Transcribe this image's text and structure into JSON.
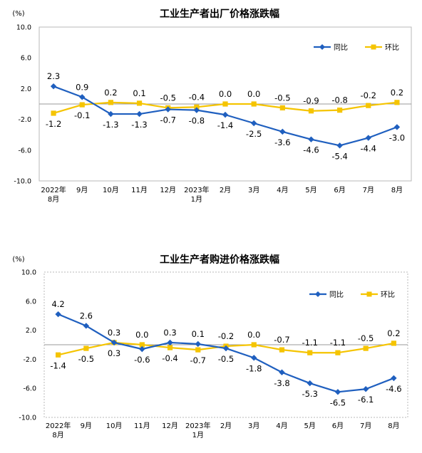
{
  "chart_data": [
    {
      "type": "line",
      "title": "工业生产者出厂价格涨跌幅",
      "unit_label": "(%)",
      "categories": [
        "2022年\n8月",
        "9月",
        "10月",
        "11月",
        "12月",
        "2023年\n1月",
        "2月",
        "3月",
        "4月",
        "5月",
        "6月",
        "7月",
        "8月"
      ],
      "y_ticks": [
        "10.0",
        "6.0",
        "2.0",
        "-2.0",
        "-6.0",
        "-10.0"
      ],
      "ylim": [
        -10,
        10
      ],
      "legend_position": "top-right",
      "series": [
        {
          "name": "同比",
          "color": "#1f5fbf",
          "marker": "diamond",
          "values": [
            2.3,
            0.9,
            -1.3,
            -1.3,
            -0.7,
            -0.8,
            -1.4,
            -2.5,
            -3.6,
            -4.6,
            -5.4,
            -4.4,
            -3.0
          ]
        },
        {
          "name": "环比",
          "color": "#f5c400",
          "marker": "square",
          "values": [
            -1.2,
            -0.1,
            0.2,
            0.1,
            -0.5,
            -0.4,
            0.0,
            0.0,
            -0.5,
            -0.9,
            -0.8,
            -0.2,
            0.2
          ]
        }
      ]
    },
    {
      "type": "line",
      "title": "工业生产者购进价格涨跌幅",
      "unit_label": "(%)",
      "categories": [
        "2022年\n8月",
        "9月",
        "10月",
        "11月",
        "12月",
        "2023年\n1月",
        "2月",
        "3月",
        "4月",
        "5月",
        "6月",
        "7月",
        "8月"
      ],
      "y_ticks": [
        "10.0",
        "6.0",
        "2.0",
        "-2.0",
        "-6.0",
        "-10.0"
      ],
      "ylim": [
        -10,
        10
      ],
      "legend_position": "top-right",
      "series": [
        {
          "name": "同比",
          "color": "#1f5fbf",
          "marker": "diamond",
          "values": [
            4.2,
            2.6,
            0.3,
            -0.6,
            0.3,
            0.1,
            -0.5,
            -1.8,
            -3.8,
            -5.3,
            -6.5,
            -6.1,
            -4.6
          ]
        },
        {
          "name": "环比",
          "color": "#f5c400",
          "marker": "square",
          "values": [
            -1.4,
            -0.5,
            0.3,
            0.0,
            -0.4,
            -0.7,
            -0.2,
            0.0,
            -0.7,
            -1.1,
            -1.1,
            -0.5,
            0.2
          ]
        }
      ]
    }
  ]
}
